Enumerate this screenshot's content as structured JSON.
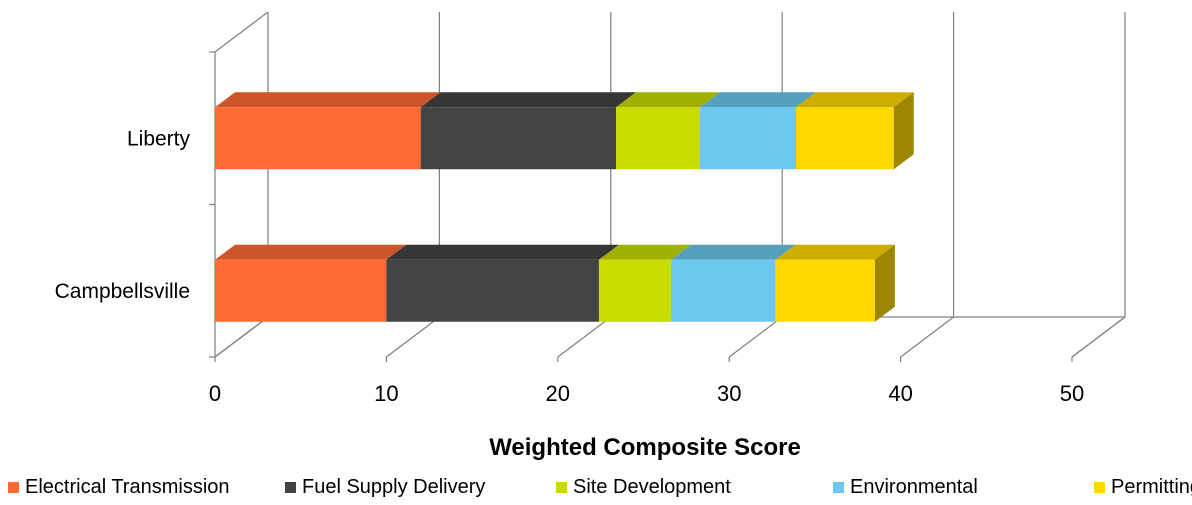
{
  "chart_data": {
    "type": "bar",
    "orientation": "horizontal",
    "stacked": true,
    "three_d": true,
    "title": "",
    "xlabel": "Weighted Composite Score",
    "ylabel": "",
    "xlim": [
      0,
      50
    ],
    "x_ticks": [
      "0",
      "10",
      "20",
      "30",
      "40",
      "50"
    ],
    "categories": [
      "Liberty",
      "Campbellsville"
    ],
    "series": [
      {
        "name": "Electrical Transmission",
        "color": "#ff6a33",
        "values": [
          12.0,
          10.0
        ]
      },
      {
        "name": "Fuel Supply Delivery",
        "color": "#444444",
        "values": [
          11.4,
          12.4
        ]
      },
      {
        "name": "Site Development",
        "color": "#c8dc00",
        "values": [
          4.9,
          4.2
        ]
      },
      {
        "name": "Environmental",
        "color": "#6cc8ee",
        "values": [
          5.6,
          6.1
        ]
      },
      {
        "name": "Permitting",
        "color": "#ffd800",
        "values": [
          5.7,
          5.8
        ]
      }
    ],
    "grid": true,
    "legend_position": "bottom"
  }
}
